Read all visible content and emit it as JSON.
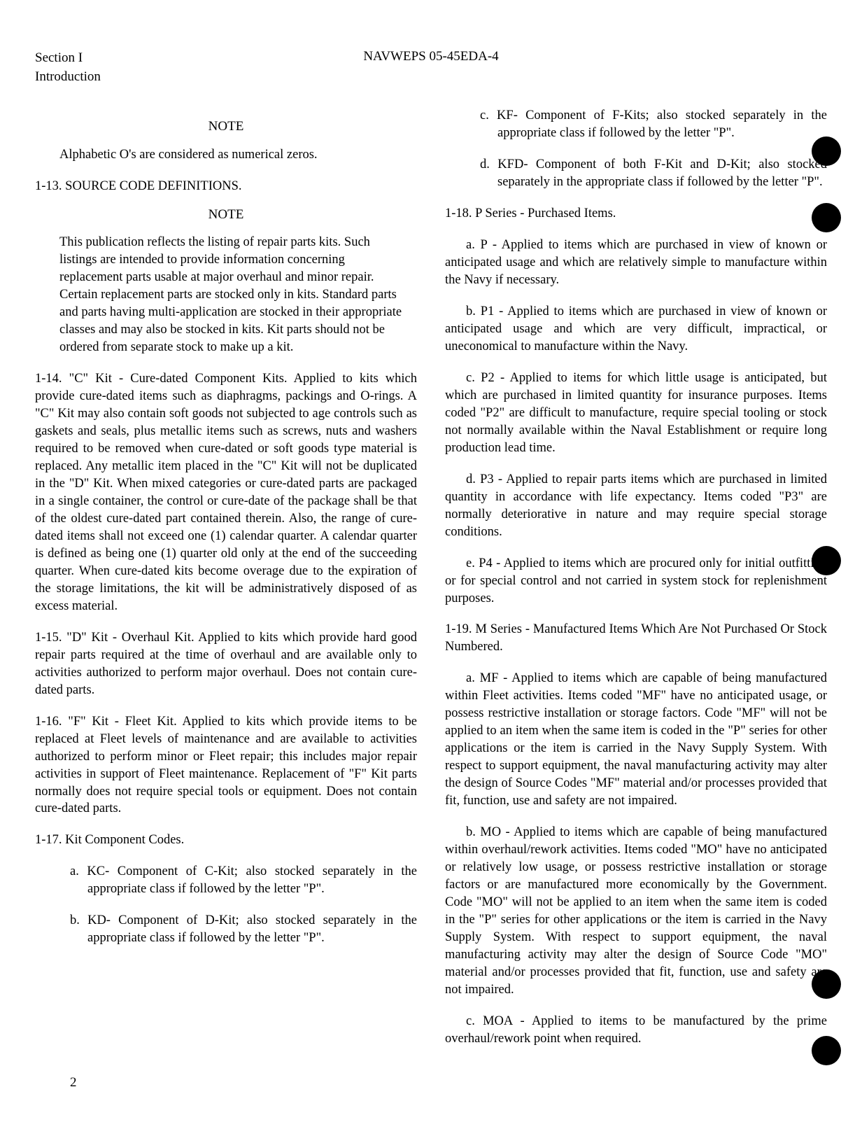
{
  "header": {
    "section": "Section I",
    "subtitle": "Introduction",
    "docId": "NAVWEPS 05-45EDA-4"
  },
  "col1": {
    "note1Title": "NOTE",
    "note1Body": "Alphabetic O's are considered as numerical zeros.",
    "sec113": "1-13.  SOURCE CODE DEFINITIONS.",
    "note2Title": "NOTE",
    "note2Body": "This publication reflects the listing of repair parts kits. Such listings are intended to provide information concerning replacement parts usable at major overhaul and minor repair. Certain replacement parts are stocked only in kits. Standard parts and parts having multi-application are stocked in their appropriate classes and may also be stocked in kits. Kit parts should not be ordered from separate stock to make up a kit.",
    "sec114": "1-14.  \"C\" Kit - Cure-dated Component Kits.  Applied to kits which provide cure-dated items such as diaphragms, packings and O-rings. A \"C\" Kit may also contain soft goods not subjected to age controls such as gaskets and seals, plus metallic items such as screws, nuts and washers required to be removed when cure-dated or soft goods type material is replaced. Any metallic item placed in the \"C\" Kit will not be duplicated in the \"D\" Kit. When mixed categories or cure-dated parts are packaged in a single container, the control or cure-date of the package shall be that of the oldest cure-dated part contained therein. Also, the range of cure-dated items shall not exceed one (1) calendar quarter. A calendar quarter is defined as being one (1) quarter old only at the end of the succeeding quarter. When cure-dated kits become overage due to the expiration of the storage limitations, the kit will be administratively disposed of as excess material.",
    "sec115": "1-15.  \"D\" Kit - Overhaul Kit. Applied to kits which provide hard good repair parts required at the time of overhaul and are available only to activities authorized to perform major overhaul. Does not contain cure-dated parts.",
    "sec116": "1-16.  \"F\" Kit - Fleet Kit. Applied to kits which provide items to be replaced at Fleet levels of maintenance and are available to activities authorized to perform minor or Fleet repair; this includes major repair activities in support of Fleet maintenance. Replacement of \"F\" Kit parts normally does not require special tools or equipment. Does not contain cure-dated parts.",
    "sec117": "1-17.  Kit Component Codes.",
    "sec117a": "a.  KC- Component of C-Kit; also stocked separately in the appropriate class if followed by the letter \"P\".",
    "sec117b": "b.  KD- Component of D-Kit; also stocked separately in the appropriate class if followed by the letter \"P\"."
  },
  "col2": {
    "sec117c": "c.  KF- Component of F-Kits; also stocked separately in the appropriate class if followed by the letter \"P\".",
    "sec117d": "d. KFD- Component of both F-Kit and D-Kit; also stocked separately in the appropriate class if followed by the letter \"P\".",
    "sec118": "1-18.  P Series - Purchased Items.",
    "sec118a": "a.  P - Applied to items which are purchased in view of known or anticipated usage and which are relatively simple to manufacture within the Navy if necessary.",
    "sec118b": "b.  P1 - Applied to items which are purchased in view of known or anticipated usage and which are very difficult, impractical, or uneconomical to manufacture within the Navy.",
    "sec118c": "c.  P2 - Applied to items for which little usage is anticipated, but which are purchased in limited quantity for insurance purposes. Items coded \"P2\" are difficult to manufacture, require special tooling or stock not normally available within the Naval Establishment or require long production lead time.",
    "sec118d": "d.  P3 - Applied to repair parts items which are purchased in limited quantity in accordance with life expectancy. Items coded \"P3\" are normally deteriorative in nature and may require special storage conditions.",
    "sec118e": "e.  P4 - Applied to items which are procured only for initial outfitting or for special control and not carried in system stock for replenishment purposes.",
    "sec119": "1-19.  M Series - Manufactured Items Which Are Not Purchased Or Stock Numbered.",
    "sec119a": "a.  MF - Applied to items which are capable of being manufactured within Fleet activities. Items coded \"MF\" have no anticipated usage, or possess restrictive installation or storage factors. Code \"MF\" will not be applied to an item when the same item is coded in the \"P\" series for other applications or the item is carried in the Navy Supply System. With respect to support equipment, the naval manufacturing activity may alter the design of Source Codes \"MF\" material and/or processes provided that fit, function, use and safety are not impaired.",
    "sec119b": "b.  MO - Applied to items which are capable of being manufactured within overhaul/rework activities. Items coded \"MO\" have no anticipated or relatively low usage, or possess restrictive installation or storage factors or are manufactured more economically by the Government. Code \"MO\" will not be applied to an item when the same item is coded in the \"P\" series for other applications or the item is carried in the Navy Supply System. With respect to support equipment, the naval manufacturing activity may alter the design of Source Code \"MO\" material and/or processes provided that fit, function, use and safety are not impaired.",
    "sec119c": "c.  MOA - Applied to items to be manufactured by the prime overhaul/rework point when required."
  },
  "pageNumber": "2"
}
